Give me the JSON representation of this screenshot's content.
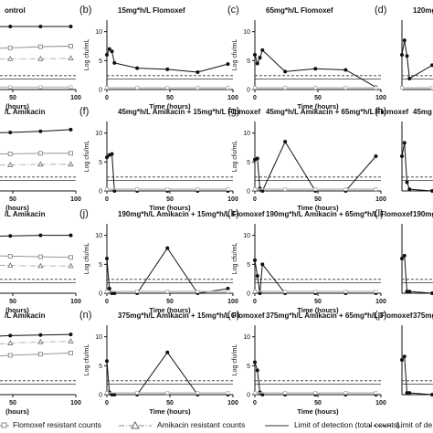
{
  "figure": {
    "legend": [
      {
        "name": "Flomoxef resistant counts",
        "marker": "square",
        "line": "solid"
      },
      {
        "name": "Amikacin resistant counts",
        "marker": "triangle",
        "line": "dashdot"
      },
      {
        "name": "Limit of detection (total counts)",
        "marker": "none",
        "line": "solid"
      },
      {
        "name": "Limit of de",
        "marker": "none",
        "line": "dashed"
      }
    ],
    "colors": {
      "total": "#111111",
      "flomoxef_resistant": "#888888",
      "amikacin_resistant": "#aaaaaa",
      "lod": "#333333"
    }
  },
  "chart_data": [
    {
      "type": "line",
      "row": 0,
      "col": 0,
      "letter": "",
      "title": "ontrol",
      "xlabel": "(hours)",
      "ylabel": "",
      "xticks": [
        "50",
        "100"
      ],
      "yticks": [],
      "xlim": [
        0,
        100
      ],
      "ylim": [
        0,
        12
      ],
      "series": [
        {
          "key": "total",
          "x": [
            0,
            2,
            4,
            6,
            24,
            48,
            72,
            96
          ],
          "y": [
            10.2,
            10.5,
            10.6,
            10.7,
            10.8,
            10.9,
            10.9,
            10.9
          ]
        },
        {
          "key": "flomoxef_resistant",
          "x": [
            0,
            24,
            48,
            72,
            96
          ],
          "y": [
            6.5,
            7.0,
            7.2,
            7.4,
            7.5
          ]
        },
        {
          "key": "amikacin_resistant",
          "x": [
            0,
            24,
            48,
            72,
            96
          ],
          "y": [
            5.0,
            5.2,
            5.3,
            5.3,
            5.4
          ]
        },
        {
          "key": "gray_baseline",
          "x": [
            0,
            24,
            48,
            72,
            96
          ],
          "y": [
            0.4,
            0.4,
            0.4,
            0.4,
            0.4
          ]
        }
      ]
    },
    {
      "type": "line",
      "row": 0,
      "col": 1,
      "letter": "(b)",
      "title": "15mg*h/L Flomoxef",
      "xlabel": "Time (hours)",
      "ylabel": "Log cfu/mL",
      "xticks": [
        "0",
        "50",
        "100"
      ],
      "yticks": [
        "0",
        "5",
        "10"
      ],
      "xlim": [
        0,
        100
      ],
      "ylim": [
        0,
        12
      ],
      "series": [
        {
          "key": "total",
          "x": [
            0,
            2,
            4,
            6,
            24,
            48,
            72,
            96
          ],
          "y": [
            6.0,
            7.0,
            6.6,
            4.6,
            3.7,
            3.5,
            3.0,
            4.4
          ]
        },
        {
          "key": "gray_baseline",
          "x": [
            0,
            24,
            48,
            72,
            96
          ],
          "y": [
            0.3,
            0.3,
            0.3,
            0.3,
            0.3
          ]
        }
      ]
    },
    {
      "type": "line",
      "row": 0,
      "col": 2,
      "letter": "(c)",
      "title": "65mg*h/L Flomoxef",
      "xlabel": "Time (hours)",
      "ylabel": "Log cfu/mL",
      "xticks": [
        "0",
        "50",
        "100"
      ],
      "yticks": [
        "0",
        "5",
        "10"
      ],
      "xlim": [
        0,
        100
      ],
      "ylim": [
        0,
        12
      ],
      "series": [
        {
          "key": "total",
          "x": [
            0,
            2,
            4,
            6,
            24,
            48,
            72,
            96
          ],
          "y": [
            6.0,
            4.5,
            5.5,
            6.8,
            3.1,
            3.6,
            3.4,
            0.4
          ]
        },
        {
          "key": "gray_baseline",
          "x": [
            0,
            24,
            48,
            72,
            96
          ],
          "y": [
            0.3,
            0.3,
            0.3,
            0.3,
            0.3
          ]
        }
      ]
    },
    {
      "type": "line",
      "row": 0,
      "col": 3,
      "letter": "(d)",
      "title": "120mg",
      "xlabel": "Ti",
      "ylabel": "",
      "xticks": [],
      "yticks": [],
      "xlim": [
        0,
        100
      ],
      "ylim": [
        0,
        12
      ],
      "series": [
        {
          "key": "total",
          "x": [
            0,
            2,
            4,
            6,
            24
          ],
          "y": [
            6.0,
            8.5,
            5.8,
            1.9,
            4.2
          ]
        },
        {
          "key": "gray_baseline",
          "x": [
            0,
            24
          ],
          "y": [
            0.3,
            0.3
          ]
        }
      ]
    },
    {
      "type": "line",
      "row": 1,
      "col": 0,
      "letter": "",
      "title": "/L Amikacin",
      "xlabel": "(hours)",
      "ylabel": "",
      "xticks": [
        "50",
        "100"
      ],
      "yticks": [],
      "xlim": [
        0,
        100
      ],
      "ylim": [
        0,
        12
      ],
      "series": [
        {
          "key": "total",
          "x": [
            0,
            24,
            48,
            72,
            96
          ],
          "y": [
            9.8,
            10.0,
            10.1,
            10.3,
            10.6
          ]
        },
        {
          "key": "flomoxef_resistant",
          "x": [
            0,
            24,
            48,
            72,
            96
          ],
          "y": [
            6.3,
            6.4,
            6.4,
            6.5,
            6.5
          ]
        },
        {
          "key": "amikacin_resistant",
          "x": [
            0,
            24,
            48,
            72,
            96
          ],
          "y": [
            4.4,
            4.4,
            4.5,
            4.6,
            4.6
          ]
        }
      ]
    },
    {
      "type": "line",
      "row": 1,
      "col": 1,
      "letter": "(f)",
      "title": "45mg*h/L Amikacin + 15mg*h/L Flomoxef",
      "xlabel": "Time (hours)",
      "ylabel": "Log cfu/mL",
      "xticks": [
        "0",
        "50",
        "100"
      ],
      "yticks": [
        "0",
        "5",
        "10"
      ],
      "xlim": [
        0,
        100
      ],
      "ylim": [
        0,
        12
      ],
      "series": [
        {
          "key": "total",
          "x": [
            0,
            2,
            4,
            6,
            24,
            48,
            72,
            96
          ],
          "y": [
            5.8,
            6.2,
            6.4,
            0,
            0,
            0,
            0,
            0
          ]
        },
        {
          "key": "gray_baseline",
          "x": [
            0,
            24,
            48,
            72,
            96
          ],
          "y": [
            0.3,
            0.3,
            0.3,
            0.3,
            0.3
          ]
        }
      ]
    },
    {
      "type": "line",
      "row": 1,
      "col": 2,
      "letter": "(g)",
      "title": "45mg*h/L Amikacin + 65mg*h/L Flomoxef",
      "xlabel": "Time (hours)",
      "ylabel": "Log cfu/mL",
      "xticks": [
        "0",
        "50",
        "100"
      ],
      "yticks": [
        "0",
        "5",
        "10"
      ],
      "xlim": [
        0,
        100
      ],
      "ylim": [
        0,
        12
      ],
      "series": [
        {
          "key": "total",
          "x": [
            0,
            2,
            4,
            6,
            24,
            48,
            72,
            96
          ],
          "y": [
            5.4,
            5.6,
            0.4,
            0,
            8.5,
            0,
            0,
            6.0
          ]
        },
        {
          "key": "gray_baseline",
          "x": [
            0,
            24,
            48,
            72,
            96
          ],
          "y": [
            0.3,
            0.3,
            0.3,
            0.3,
            0.3
          ]
        }
      ]
    },
    {
      "type": "line",
      "row": 1,
      "col": 3,
      "letter": "(h)",
      "title": "45mg",
      "xlabel": "",
      "ylabel": "",
      "xticks": [],
      "yticks": [],
      "xlim": [
        0,
        100
      ],
      "ylim": [
        0,
        12
      ],
      "series": [
        {
          "key": "total",
          "x": [
            0,
            2,
            4,
            6,
            24
          ],
          "y": [
            6.0,
            8.3,
            1.5,
            0.3,
            0
          ]
        }
      ]
    },
    {
      "type": "line",
      "row": 2,
      "col": 0,
      "letter": "",
      "title": "/L Amikacin",
      "xlabel": "(hours)",
      "ylabel": "",
      "xticks": [
        "50",
        "100"
      ],
      "yticks": [],
      "xlim": [
        0,
        100
      ],
      "ylim": [
        0,
        12
      ],
      "series": [
        {
          "key": "total",
          "x": [
            0,
            24,
            48,
            72,
            96
          ],
          "y": [
            9.6,
            9.8,
            9.9,
            10.0,
            10.0
          ]
        },
        {
          "key": "flomoxef_resistant",
          "x": [
            0,
            24,
            48,
            72,
            96
          ],
          "y": [
            6.8,
            6.6,
            6.4,
            6.3,
            6.2
          ]
        },
        {
          "key": "amikacin_resistant",
          "x": [
            0,
            24,
            48,
            72,
            96
          ],
          "y": [
            5.0,
            4.9,
            4.8,
            4.7,
            4.7
          ]
        }
      ]
    },
    {
      "type": "line",
      "row": 2,
      "col": 1,
      "letter": "(j)",
      "title": "190mg*h/L Amikacin + 15mg*h/L Flomoxef",
      "xlabel": "Time (hours)",
      "ylabel": "Log cfu/mL",
      "xticks": [
        "0",
        "50",
        "100"
      ],
      "yticks": [
        "0",
        "5",
        "10"
      ],
      "xlim": [
        0,
        100
      ],
      "ylim": [
        0,
        12
      ],
      "series": [
        {
          "key": "total",
          "x": [
            0,
            2,
            4,
            6,
            24,
            48,
            72,
            96
          ],
          "y": [
            6.0,
            0.8,
            0,
            0,
            0,
            7.8,
            0,
            0.8
          ]
        },
        {
          "key": "gray_baseline",
          "x": [
            0,
            24,
            48,
            72,
            96
          ],
          "y": [
            0.3,
            0.3,
            0.3,
            0.3,
            0.3
          ]
        }
      ]
    },
    {
      "type": "line",
      "row": 2,
      "col": 2,
      "letter": "(k)",
      "title": "190mg*h/L Amikacin + 65mg*h/L Flomoxef",
      "xlabel": "Time (hours)",
      "ylabel": "Log cfu/mL",
      "xticks": [
        "0",
        "50",
        "100"
      ],
      "yticks": [
        "0",
        "5",
        "10"
      ],
      "xlim": [
        0,
        100
      ],
      "ylim": [
        0,
        12
      ],
      "series": [
        {
          "key": "total",
          "x": [
            0,
            2,
            4,
            6,
            24,
            48,
            72,
            96
          ],
          "y": [
            5.7,
            3.0,
            0,
            5.0,
            0,
            0,
            0,
            0
          ]
        },
        {
          "key": "gray_baseline",
          "x": [
            0,
            24,
            48,
            72,
            96
          ],
          "y": [
            0.3,
            0.3,
            0.3,
            0.3,
            0.3
          ]
        }
      ]
    },
    {
      "type": "line",
      "row": 2,
      "col": 3,
      "letter": "(l)",
      "title": "190mg",
      "xlabel": "",
      "ylabel": "",
      "xticks": [],
      "yticks": [],
      "xlim": [
        0,
        100
      ],
      "ylim": [
        0,
        12
      ],
      "series": [
        {
          "key": "total",
          "x": [
            0,
            2,
            4,
            6,
            24
          ],
          "y": [
            6.0,
            6.5,
            0.3,
            0.3,
            0
          ]
        }
      ]
    },
    {
      "type": "line",
      "row": 3,
      "col": 0,
      "letter": "",
      "title": "/L Amikacin",
      "xlabel": "(hours)",
      "ylabel": "",
      "xticks": [
        "50",
        "100"
      ],
      "yticks": [],
      "xlim": [
        0,
        100
      ],
      "ylim": [
        0,
        12
      ],
      "series": [
        {
          "key": "total",
          "x": [
            0,
            24,
            48,
            72,
            96
          ],
          "y": [
            9.8,
            10.0,
            10.2,
            10.3,
            10.4
          ]
        },
        {
          "key": "flomoxef_resistant",
          "x": [
            0,
            24,
            48,
            72,
            96
          ],
          "y": [
            6.3,
            6.5,
            6.8,
            7.0,
            7.2
          ]
        },
        {
          "key": "amikacin_resistant",
          "x": [
            0,
            24,
            48,
            72,
            96
          ],
          "y": [
            8.0,
            8.5,
            8.9,
            9.1,
            9.2
          ]
        }
      ]
    },
    {
      "type": "line",
      "row": 3,
      "col": 1,
      "letter": "(n)",
      "title": "375mg*h/L Amikacin + 15mg*h/L Flomoxef",
      "xlabel": "Time (hours)",
      "ylabel": "Log cfu/mL",
      "xticks": [
        "0",
        "50",
        "100"
      ],
      "yticks": [
        "0",
        "5",
        "10"
      ],
      "xlim": [
        0,
        100
      ],
      "ylim": [
        0,
        12
      ],
      "series": [
        {
          "key": "total",
          "x": [
            0,
            2,
            4,
            6,
            24,
            48,
            72,
            96
          ],
          "y": [
            5.8,
            0.4,
            0,
            0,
            0,
            7.3,
            0,
            0
          ]
        },
        {
          "key": "gray_baseline",
          "x": [
            0,
            24,
            48,
            72,
            96
          ],
          "y": [
            0.3,
            0.3,
            0.3,
            0.3,
            0.3
          ]
        }
      ]
    },
    {
      "type": "line",
      "row": 3,
      "col": 2,
      "letter": "(o)",
      "title": "375mg*h/L Amikacin + 65mg*h/L Flomoxef",
      "xlabel": "Time (hours)",
      "ylabel": "Log cfu/mL",
      "xticks": [
        "0",
        "50",
        "100"
      ],
      "yticks": [
        "0",
        "5",
        "10"
      ],
      "xlim": [
        0,
        100
      ],
      "ylim": [
        0,
        12
      ],
      "series": [
        {
          "key": "total",
          "x": [
            0,
            2,
            4,
            6,
            24,
            48,
            72,
            96
          ],
          "y": [
            5.6,
            4.2,
            0.4,
            0,
            0,
            0,
            0,
            0
          ]
        },
        {
          "key": "gray_baseline",
          "x": [
            0,
            24,
            48,
            72,
            96
          ],
          "y": [
            0.3,
            0.3,
            0.3,
            0.3,
            0.3
          ]
        }
      ]
    },
    {
      "type": "line",
      "row": 3,
      "col": 3,
      "letter": "(p)",
      "title": "375mg",
      "xlabel": "",
      "ylabel": "",
      "xticks": [],
      "yticks": [],
      "xlim": [
        0,
        100
      ],
      "ylim": [
        0,
        12
      ],
      "series": [
        {
          "key": "total",
          "x": [
            0,
            2,
            4,
            6,
            24
          ],
          "y": [
            6.0,
            6.6,
            0.3,
            0.3,
            0
          ]
        }
      ]
    }
  ]
}
